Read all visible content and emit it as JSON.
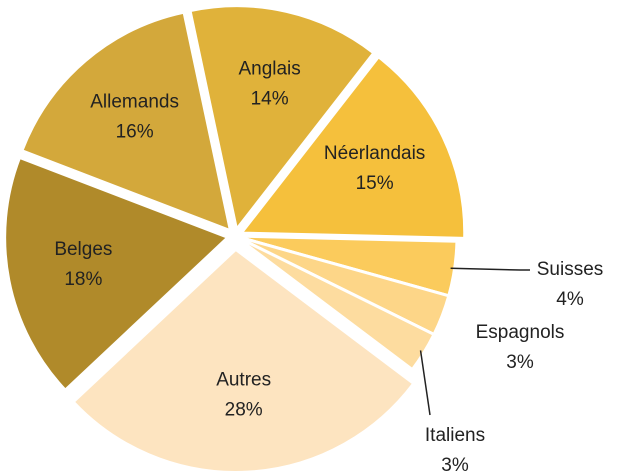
{
  "chart_data": {
    "type": "pie",
    "categories": [
      "Anglais",
      "Néerlandais",
      "Suisses",
      "Espagnols",
      "Italiens",
      "Autres",
      "Belges",
      "Allemands"
    ],
    "values": [
      14,
      15,
      4,
      3,
      3,
      28,
      18,
      16
    ],
    "value_labels": [
      "14%",
      "15%",
      "4%",
      "3%",
      "3%",
      "28%",
      "18%",
      "16%"
    ],
    "colors": [
      "#e0b23a",
      "#f5c03c",
      "#fbcb5c",
      "#fdd688",
      "#fddc9f",
      "#fde4c0",
      "#b08a2a",
      "#d3a83b"
    ]
  }
}
